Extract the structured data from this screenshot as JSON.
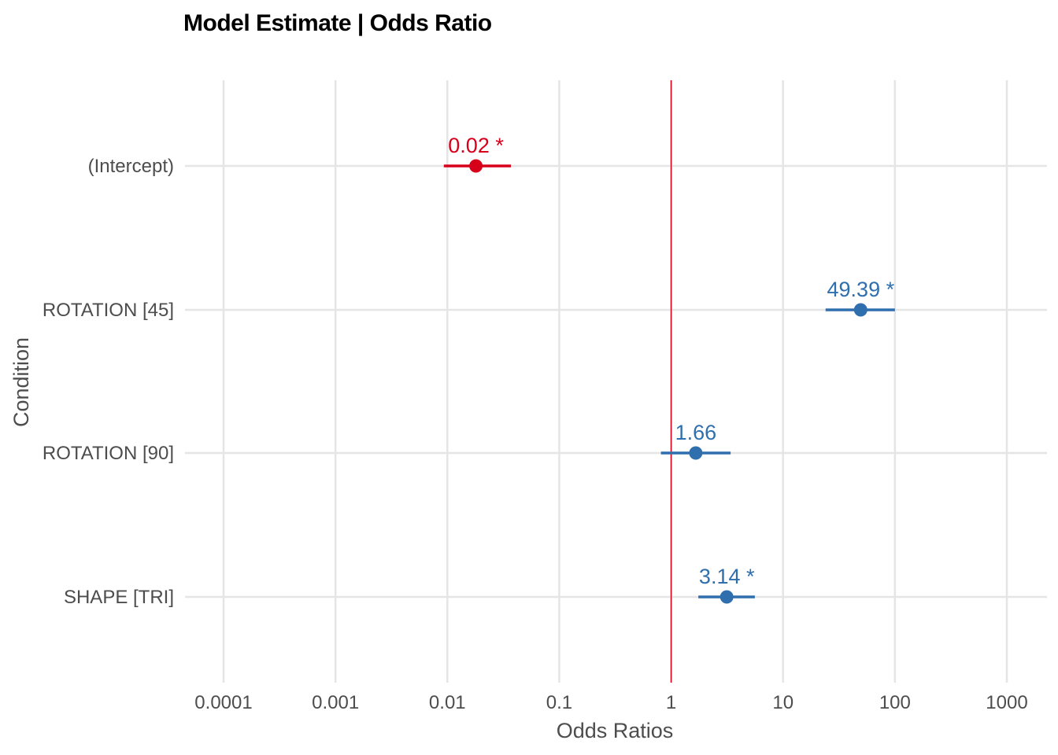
{
  "chart_data": {
    "type": "scatter",
    "title": "Model Estimate | Odds Ratio",
    "xlabel": "Odds Ratios",
    "ylabel": "Condition",
    "x_scale": "log10",
    "xlim": [
      0.0001,
      1000
    ],
    "x_ticks": [
      0.0001,
      0.001,
      0.01,
      0.1,
      1,
      10,
      100,
      1000
    ],
    "x_tick_labels": [
      "0.0001",
      "0.001",
      "0.01",
      "0.1",
      "1",
      "10",
      "100",
      "1000"
    ],
    "reference_line": 1,
    "grid": true,
    "categories": [
      "(Intercept)",
      "ROTATION [45]",
      "ROTATION [90]",
      "SHAPE [TRI]"
    ],
    "points": [
      {
        "term": "(Intercept)",
        "estimate": 0.018,
        "ci_low": 0.0093,
        "ci_high": 0.037,
        "label": "0.02 *",
        "color": "#d7001b"
      },
      {
        "term": "ROTATION [45]",
        "estimate": 49.39,
        "ci_low": 24,
        "ci_high": 100,
        "label": "49.39 *",
        "color": "#2f6fad"
      },
      {
        "term": "ROTATION [90]",
        "estimate": 1.66,
        "ci_low": 0.81,
        "ci_high": 3.4,
        "label": "1.66",
        "color": "#2f6fad"
      },
      {
        "term": "SHAPE [TRI]",
        "estimate": 3.14,
        "ci_low": 1.75,
        "ci_high": 5.6,
        "label": "3.14 *",
        "color": "#2f6fad"
      }
    ],
    "colors": {
      "negative": "#d7001b",
      "positive": "#2f6fad",
      "reference_line": "#d7001b",
      "grid": "#e5e5e5"
    }
  }
}
